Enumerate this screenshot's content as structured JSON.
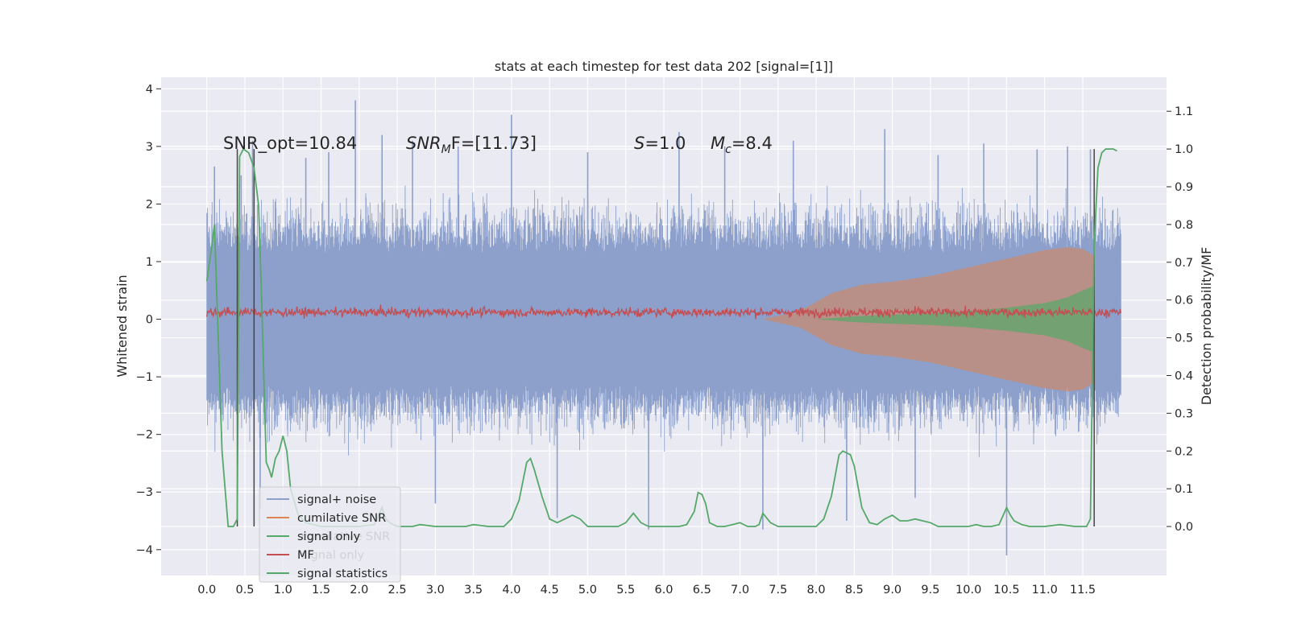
{
  "chart_data": {
    "type": "line",
    "title": "stats at each timestep for test data 202 [signal=[1]]",
    "xlabel": "",
    "ylabel": "Whitened strain",
    "y2label": "Detection probability/MF",
    "xlim": [
      -0.6,
      12.6
    ],
    "ylim": [
      -4.45,
      4.2
    ],
    "y2lim": [
      -0.13,
      1.19
    ],
    "x_ticks": [
      "0.0",
      "0.5",
      "1.0",
      "1.5",
      "2.0",
      "2.5",
      "3.0",
      "3.5",
      "4.0",
      "4.5",
      "5.0",
      "5.5",
      "6.0",
      "6.5",
      "7.0",
      "7.5",
      "8.0",
      "8.5",
      "9.0",
      "9.5",
      "10.0",
      "10.5",
      "11.0",
      "11.5"
    ],
    "y_ticks": [
      "4",
      "3",
      "2",
      "1",
      "0",
      "−1",
      "−2",
      "−3",
      "−4"
    ],
    "y2_ticks": [
      "1.1",
      "1.0",
      "0.9",
      "0.8",
      "0.7",
      "0.6",
      "0.5",
      "0.4",
      "0.3",
      "0.2",
      "0.1",
      "0.0"
    ],
    "grid": true,
    "legend_position": "lower-left",
    "annotations": {
      "snr_opt": "SNR_opt=10.84",
      "snr_mf_sym": "SNR",
      "snr_mf_sub": "M",
      "snr_mf_rest": "F=[11.73]",
      "s_sym": "S",
      "s_rest": "=1.0",
      "mc_sym": "M",
      "mc_sub": "c",
      "mc_rest": "=8.4"
    },
    "legend": [
      {
        "label": "signal+ noise",
        "color": "#8da0cb"
      },
      {
        "label": "cumilative SNR",
        "color": "#dd8452"
      },
      {
        "label": "signal only",
        "color": "#55a868"
      },
      {
        "label": "MF",
        "color": "#c44e52"
      },
      {
        "label": "signal statistics",
        "color": "#55a868"
      }
    ],
    "ghost_legend": [
      {
        "label": "cumilative SNR"
      },
      {
        "label": "signal only"
      }
    ],
    "series": [
      {
        "name": "signal+ noise",
        "axis": "left",
        "kind": "noise-band",
        "color": "#8da0cb",
        "x_range": [
          0.0,
          12.0
        ],
        "typical_envelope": [
          -2.2,
          2.2
        ],
        "spikes": [
          {
            "x": 0.1,
            "y": 2.65
          },
          {
            "x": 0.45,
            "y": 2.5
          },
          {
            "x": 0.6,
            "y": 3.1
          },
          {
            "x": 0.7,
            "y": -3.3
          },
          {
            "x": 1.3,
            "y": 2.8
          },
          {
            "x": 1.6,
            "y": 2.9
          },
          {
            "x": 1.95,
            "y": 3.8
          },
          {
            "x": 2.3,
            "y": 3.2
          },
          {
            "x": 2.7,
            "y": 3.1
          },
          {
            "x": 3.0,
            "y": -3.2
          },
          {
            "x": 3.3,
            "y": 3.0
          },
          {
            "x": 4.0,
            "y": 3.55
          },
          {
            "x": 4.6,
            "y": -3.45
          },
          {
            "x": 5.0,
            "y": 2.9
          },
          {
            "x": 5.8,
            "y": -3.65
          },
          {
            "x": 6.2,
            "y": 3.25
          },
          {
            "x": 6.8,
            "y": 3.0
          },
          {
            "x": 7.3,
            "y": -3.65
          },
          {
            "x": 7.7,
            "y": 3.1
          },
          {
            "x": 8.4,
            "y": -3.5
          },
          {
            "x": 8.9,
            "y": 3.3
          },
          {
            "x": 9.3,
            "y": -3.1
          },
          {
            "x": 9.6,
            "y": 2.85
          },
          {
            "x": 10.2,
            "y": 3.05
          },
          {
            "x": 10.5,
            "y": -4.1
          },
          {
            "x": 10.9,
            "y": 2.95
          },
          {
            "x": 11.3,
            "y": 3.0
          },
          {
            "x": 11.6,
            "y": 2.95
          }
        ]
      },
      {
        "name": "cumilative SNR",
        "axis": "left",
        "kind": "band",
        "color": "#dd8452",
        "x": [
          7.3,
          7.8,
          8.2,
          8.6,
          9.0,
          9.5,
          10.0,
          10.5,
          11.0,
          11.3,
          11.5,
          11.65
        ],
        "upper": [
          0.0,
          0.15,
          0.45,
          0.6,
          0.65,
          0.75,
          0.9,
          1.05,
          1.2,
          1.25,
          1.22,
          1.1
        ],
        "lower": [
          0.0,
          -0.15,
          -0.45,
          -0.6,
          -0.65,
          -0.75,
          -0.9,
          -1.05,
          -1.2,
          -1.25,
          -1.22,
          -1.1
        ]
      },
      {
        "name": "signal only",
        "axis": "left",
        "kind": "band",
        "color": "#55a868",
        "x": [
          8.0,
          8.5,
          9.0,
          9.5,
          10.0,
          10.5,
          11.0,
          11.3,
          11.5,
          11.65
        ],
        "upper": [
          0.0,
          0.05,
          0.08,
          0.1,
          0.14,
          0.2,
          0.28,
          0.38,
          0.5,
          0.58
        ],
        "lower": [
          0.0,
          -0.05,
          -0.08,
          -0.1,
          -0.14,
          -0.2,
          -0.28,
          -0.38,
          -0.5,
          -0.58
        ]
      },
      {
        "name": "MF",
        "axis": "left",
        "kind": "noise-line",
        "color": "#c44e52",
        "x_range": [
          0.0,
          12.0
        ],
        "y_range": [
          0.0,
          0.3
        ]
      },
      {
        "name": "signal statistics",
        "axis": "right",
        "kind": "line",
        "color": "#55a868",
        "x": [
          0.0,
          0.05,
          0.1,
          0.2,
          0.28,
          0.35,
          0.4,
          0.43,
          0.48,
          0.55,
          0.62,
          0.68,
          0.72,
          0.78,
          0.82,
          0.85,
          0.9,
          0.95,
          1.0,
          1.05,
          1.1,
          1.2,
          1.3,
          1.5,
          1.7,
          2.0,
          2.2,
          2.3,
          2.35,
          2.4,
          2.5,
          2.7,
          2.8,
          3.0,
          3.2,
          3.4,
          3.5,
          3.7,
          3.9,
          4.0,
          4.1,
          4.2,
          4.25,
          4.3,
          4.4,
          4.5,
          4.6,
          4.7,
          4.8,
          4.9,
          5.0,
          5.2,
          5.4,
          5.5,
          5.6,
          5.7,
          5.8,
          6.0,
          6.2,
          6.3,
          6.4,
          6.45,
          6.5,
          6.55,
          6.6,
          6.7,
          6.8,
          6.9,
          7.0,
          7.1,
          7.2,
          7.25,
          7.3,
          7.4,
          7.5,
          7.8,
          8.0,
          8.1,
          8.2,
          8.3,
          8.35,
          8.4,
          8.45,
          8.5,
          8.6,
          8.7,
          8.8,
          8.9,
          9.0,
          9.1,
          9.2,
          9.3,
          9.5,
          9.6,
          9.7,
          9.8,
          10.0,
          10.1,
          10.2,
          10.3,
          10.4,
          10.5,
          10.55,
          10.6,
          10.7,
          10.8,
          11.0,
          11.2,
          11.4,
          11.55,
          11.6,
          11.65,
          11.7,
          11.75,
          11.8,
          11.9,
          11.95
        ],
        "y": [
          0.65,
          0.72,
          0.8,
          0.2,
          0.0,
          0.0,
          0.02,
          0.98,
          1.0,
          0.99,
          0.95,
          0.85,
          0.6,
          0.17,
          0.15,
          0.13,
          0.18,
          0.2,
          0.24,
          0.2,
          0.1,
          0.03,
          0.01,
          0.0,
          0.0,
          0.0,
          0.005,
          0.05,
          0.02,
          0.01,
          0.0,
          0.0,
          0.005,
          0.0,
          0.0,
          0.0,
          0.005,
          0.0,
          0.0,
          0.02,
          0.07,
          0.17,
          0.18,
          0.15,
          0.08,
          0.02,
          0.01,
          0.02,
          0.03,
          0.02,
          0.0,
          0.0,
          0.0,
          0.01,
          0.035,
          0.01,
          0.0,
          0.0,
          0.0,
          0.005,
          0.04,
          0.09,
          0.085,
          0.06,
          0.01,
          0.0,
          0.0,
          0.005,
          0.01,
          0.0,
          0.0,
          0.005,
          0.035,
          0.01,
          0.0,
          0.0,
          0.0,
          0.02,
          0.08,
          0.19,
          0.2,
          0.195,
          0.19,
          0.16,
          0.05,
          0.01,
          0.005,
          0.02,
          0.03,
          0.015,
          0.015,
          0.02,
          0.01,
          0.0,
          0.0,
          0.0,
          0.0,
          0.005,
          0.0,
          0.0,
          0.005,
          0.05,
          0.03,
          0.015,
          0.005,
          0.0,
          0.0,
          0.005,
          0.0,
          0.0,
          0.02,
          0.75,
          0.95,
          0.99,
          1.0,
          1.0,
          0.995
        ]
      },
      {
        "name": "",
        "axis": "right",
        "kind": "vlines",
        "color": "#444444",
        "x": [
          0.4,
          0.62,
          11.65
        ]
      }
    ]
  }
}
